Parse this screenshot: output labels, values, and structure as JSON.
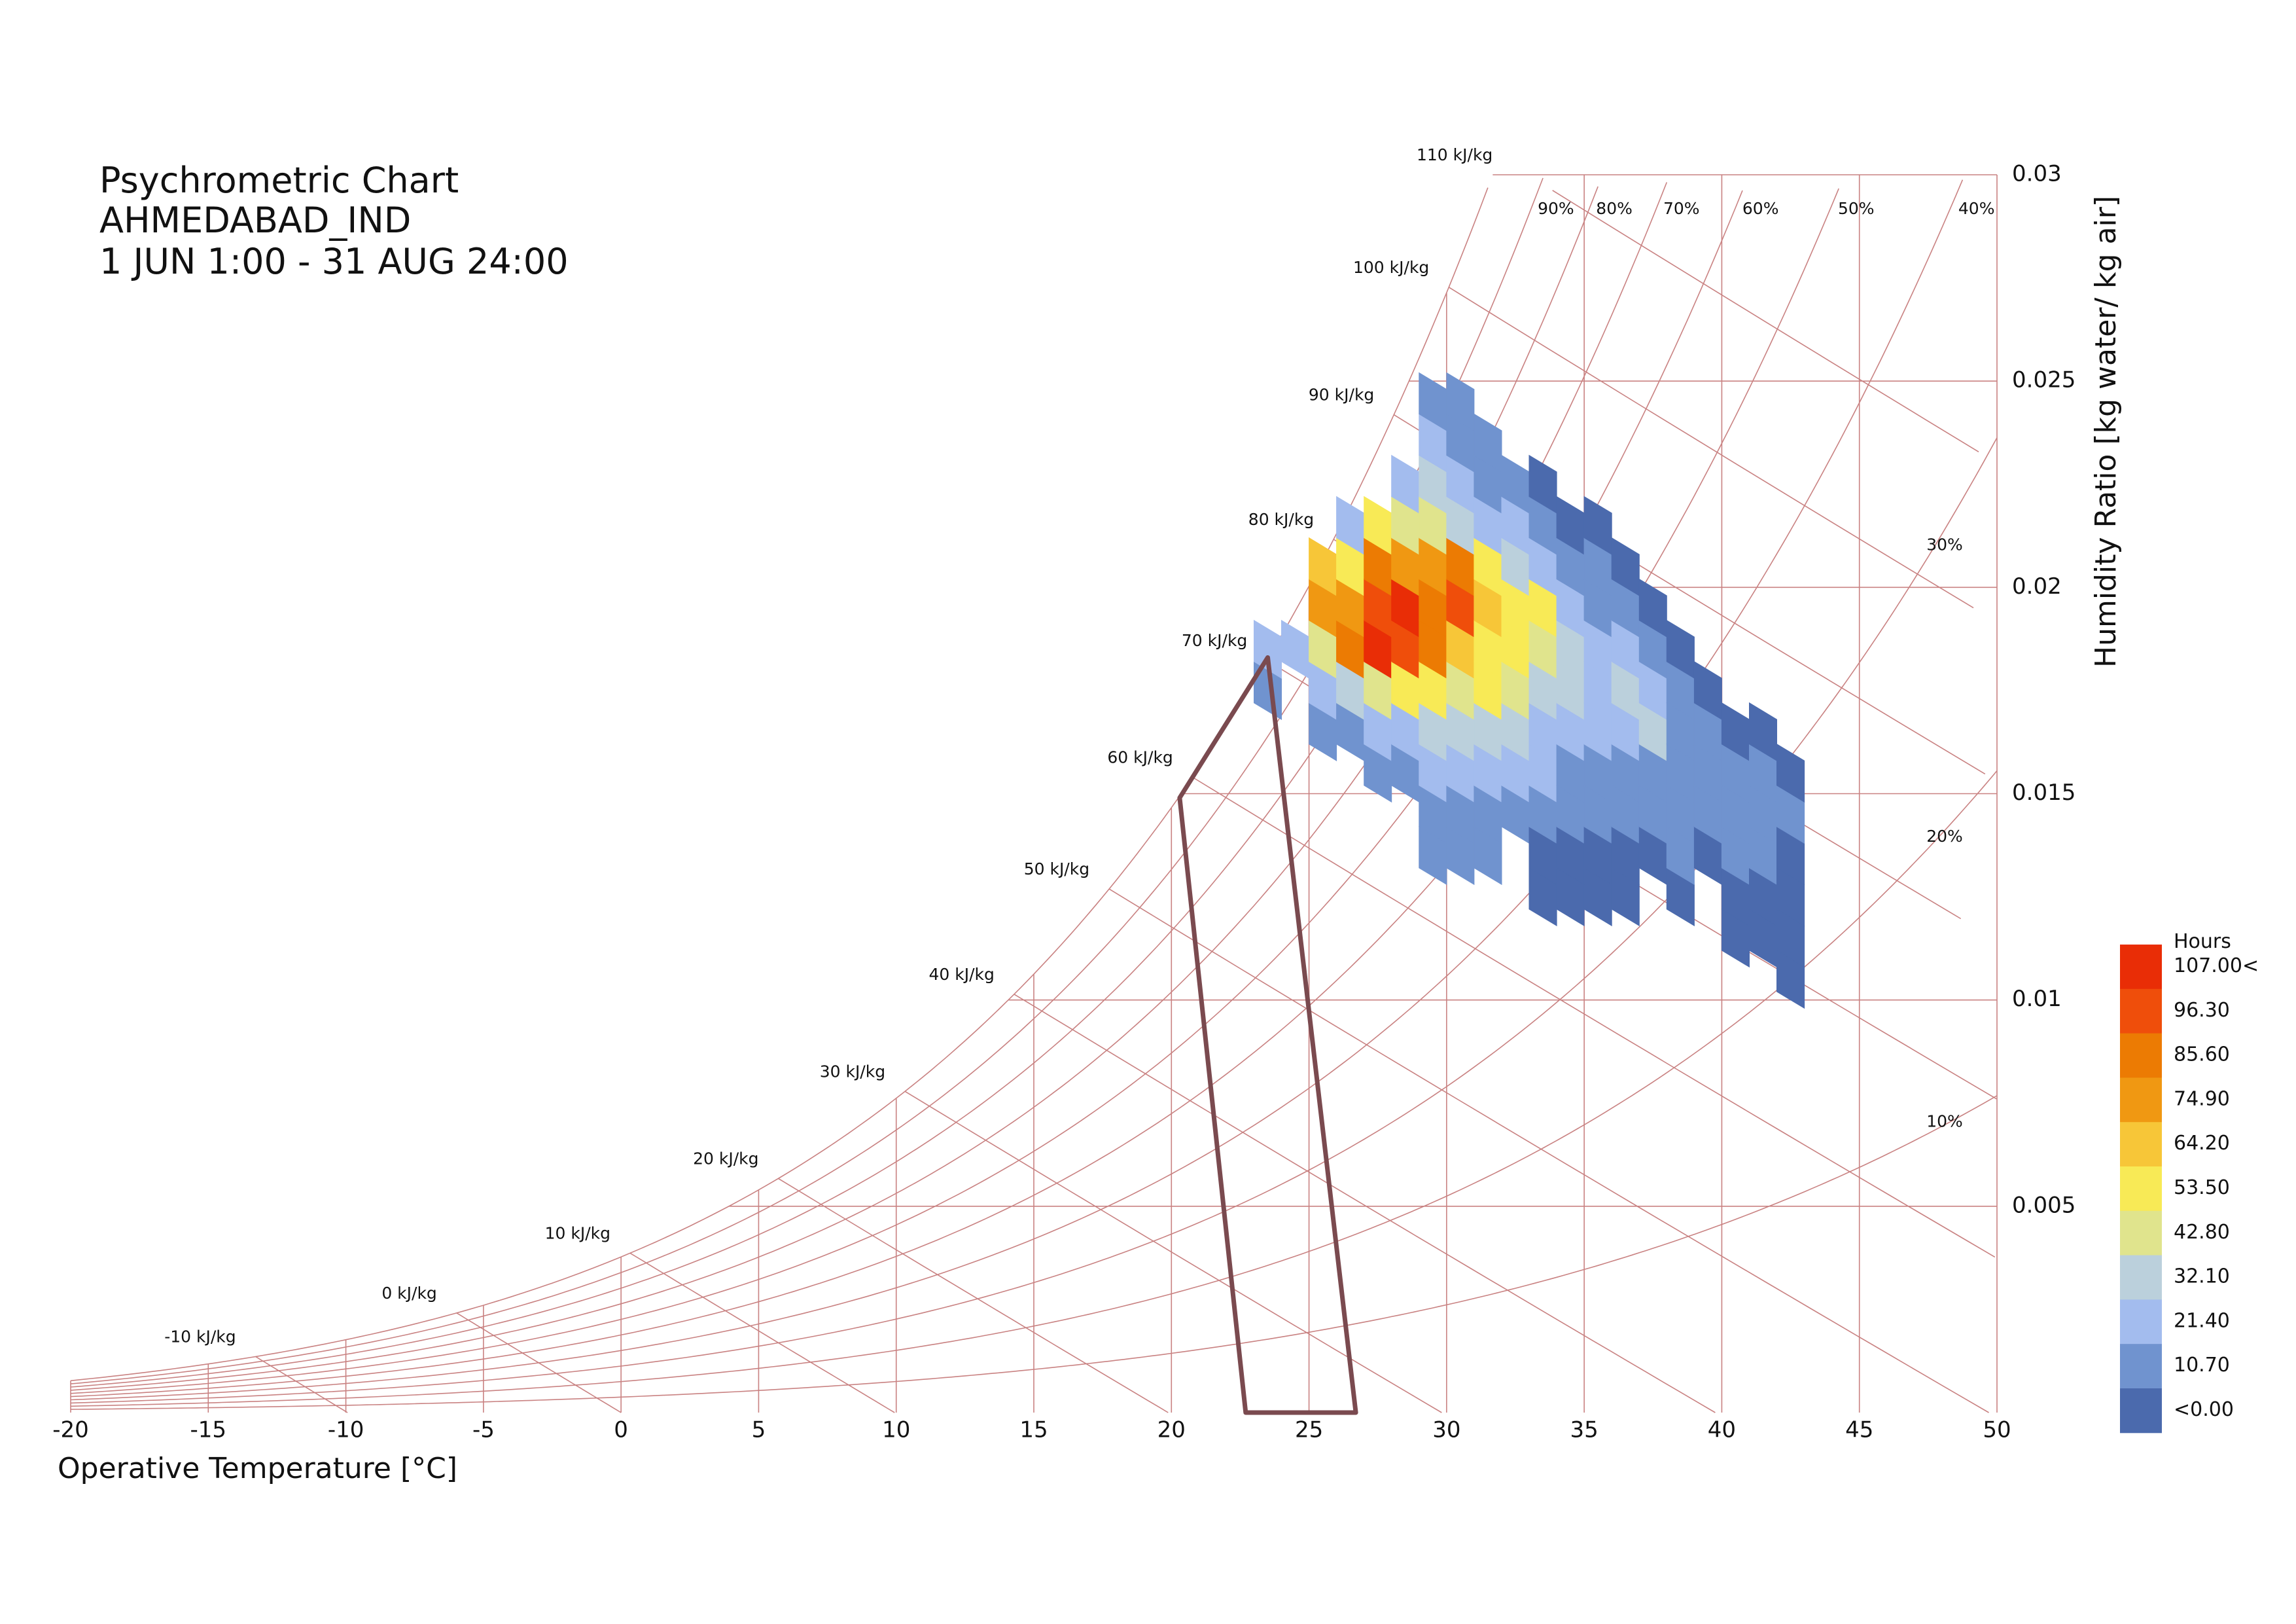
{
  "chart_data": {
    "type": "heatmap",
    "chart_kind": "psychrometric",
    "title_lines": [
      "Psychrometric Chart",
      "AHMEDABAD_IND",
      "1 JUN 1:00 - 31 AUG 24:00"
    ],
    "xlabel": "Operative Temperature [°C]",
    "ylabel": "Humidity Ratio [kg water/ kg air]",
    "xlim": [
      -20,
      50
    ],
    "ylim": [
      0,
      0.03
    ],
    "x_ticks": [
      "-20",
      "-15",
      "-10",
      "-5",
      "0",
      "5",
      "10",
      "15",
      "20",
      "25",
      "30",
      "35",
      "40",
      "45",
      "50"
    ],
    "y_ticks": [
      {
        "value": 0.005,
        "label": "0.005"
      },
      {
        "value": 0.01,
        "label": "0.01"
      },
      {
        "value": 0.015,
        "label": "0.015"
      },
      {
        "value": 0.02,
        "label": "0.02"
      },
      {
        "value": 0.025,
        "label": "0.025"
      },
      {
        "value": 0.03,
        "label": "0.03"
      }
    ],
    "enthalpy_labels": [
      {
        "value": -10,
        "label": "-10 kJ/kg"
      },
      {
        "value": 0,
        "label": "0 kJ/kg"
      },
      {
        "value": 10,
        "label": "10 kJ/kg"
      },
      {
        "value": 20,
        "label": "20 kJ/kg"
      },
      {
        "value": 30,
        "label": "30 kJ/kg"
      },
      {
        "value": 40,
        "label": "40 kJ/kg"
      },
      {
        "value": 50,
        "label": "50 kJ/kg"
      },
      {
        "value": 60,
        "label": "60 kJ/kg"
      },
      {
        "value": 70,
        "label": "70 kJ/kg"
      },
      {
        "value": 80,
        "label": "80 kJ/kg"
      },
      {
        "value": 90,
        "label": "90 kJ/kg"
      },
      {
        "value": 100,
        "label": "100 kJ/kg"
      },
      {
        "value": 110,
        "label": "110 kJ/kg"
      }
    ],
    "rh_labels": [
      {
        "rh": 0.9,
        "label": "90%"
      },
      {
        "rh": 0.8,
        "label": "80%"
      },
      {
        "rh": 0.7,
        "label": "70%"
      },
      {
        "rh": 0.6,
        "label": "60%"
      },
      {
        "rh": 0.5,
        "label": "50%"
      },
      {
        "rh": 0.4,
        "label": "40%"
      },
      {
        "rh": 0.3,
        "label": "30%"
      },
      {
        "rh": 0.2,
        "label": "20%"
      },
      {
        "rh": 0.1,
        "label": "10%"
      }
    ],
    "comfort_polygon": [
      [
        22.7,
        0.0
      ],
      [
        26.7,
        0.0
      ],
      [
        23.5,
        0.0183
      ],
      [
        20.3,
        0.0149
      ]
    ],
    "legend": {
      "title": "Hours",
      "position": "bottom-right",
      "labels": [
        "107.00<",
        "96.30",
        "85.60",
        "74.90",
        "64.20",
        "53.50",
        "42.80",
        "32.10",
        "21.40",
        "10.70",
        "<0.00"
      ],
      "colors": [
        "#e92d06",
        "#ef4e0b",
        "#ec7b03",
        "#f09812",
        "#f7c638",
        "#f8ea56",
        "#e0e48d",
        "#bbd0dc",
        "#a3bcee",
        "#7093cf",
        "#4b6aad"
      ]
    },
    "cells": [
      {
        "t": 23.5,
        "w": 0.0175,
        "c": 1
      },
      {
        "t": 23.5,
        "w": 0.0185,
        "c": 2
      },
      {
        "t": 24.5,
        "w": 0.0185,
        "c": 2
      },
      {
        "t": 25.5,
        "w": 0.0165,
        "c": 1
      },
      {
        "t": 25.5,
        "w": 0.0175,
        "c": 2
      },
      {
        "t": 25.5,
        "w": 0.0185,
        "c": 4
      },
      {
        "t": 25.5,
        "w": 0.0195,
        "c": 7
      },
      {
        "t": 25.5,
        "w": 0.0205,
        "c": 6
      },
      {
        "t": 26.5,
        "w": 0.0165,
        "c": 1
      },
      {
        "t": 26.5,
        "w": 0.0175,
        "c": 3
      },
      {
        "t": 26.5,
        "w": 0.0185,
        "c": 8
      },
      {
        "t": 26.5,
        "w": 0.0195,
        "c": 7
      },
      {
        "t": 26.5,
        "w": 0.0205,
        "c": 5
      },
      {
        "t": 26.5,
        "w": 0.0215,
        "c": 2
      },
      {
        "t": 27.5,
        "w": 0.0155,
        "c": 1
      },
      {
        "t": 27.5,
        "w": 0.0165,
        "c": 2
      },
      {
        "t": 27.5,
        "w": 0.0175,
        "c": 4
      },
      {
        "t": 27.5,
        "w": 0.0185,
        "c": 10
      },
      {
        "t": 27.5,
        "w": 0.0195,
        "c": 9
      },
      {
        "t": 27.5,
        "w": 0.0205,
        "c": 8
      },
      {
        "t": 27.5,
        "w": 0.0215,
        "c": 5
      },
      {
        "t": 28.5,
        "w": 0.0155,
        "c": 1
      },
      {
        "t": 28.5,
        "w": 0.0165,
        "c": 2
      },
      {
        "t": 28.5,
        "w": 0.0175,
        "c": 5
      },
      {
        "t": 28.5,
        "w": 0.0185,
        "c": 9
      },
      {
        "t": 28.5,
        "w": 0.0195,
        "c": 10
      },
      {
        "t": 28.5,
        "w": 0.0205,
        "c": 7
      },
      {
        "t": 28.5,
        "w": 0.0215,
        "c": 4
      },
      {
        "t": 28.5,
        "w": 0.0225,
        "c": 2
      },
      {
        "t": 29.5,
        "w": 0.0135,
        "c": 1
      },
      {
        "t": 29.5,
        "w": 0.0145,
        "c": 1
      },
      {
        "t": 29.5,
        "w": 0.0155,
        "c": 2
      },
      {
        "t": 29.5,
        "w": 0.0165,
        "c": 3
      },
      {
        "t": 29.5,
        "w": 0.0175,
        "c": 5
      },
      {
        "t": 29.5,
        "w": 0.0185,
        "c": 8
      },
      {
        "t": 29.5,
        "w": 0.0195,
        "c": 8
      },
      {
        "t": 29.5,
        "w": 0.0205,
        "c": 7
      },
      {
        "t": 29.5,
        "w": 0.0215,
        "c": 4
      },
      {
        "t": 29.5,
        "w": 0.0225,
        "c": 3
      },
      {
        "t": 29.5,
        "w": 0.0235,
        "c": 2
      },
      {
        "t": 29.5,
        "w": 0.0245,
        "c": 1
      },
      {
        "t": 30.5,
        "w": 0.0135,
        "c": 1
      },
      {
        "t": 30.5,
        "w": 0.0145,
        "c": 1
      },
      {
        "t": 30.5,
        "w": 0.0155,
        "c": 2
      },
      {
        "t": 30.5,
        "w": 0.0165,
        "c": 3
      },
      {
        "t": 30.5,
        "w": 0.0175,
        "c": 4
      },
      {
        "t": 30.5,
        "w": 0.0185,
        "c": 6
      },
      {
        "t": 30.5,
        "w": 0.0195,
        "c": 9
      },
      {
        "t": 30.5,
        "w": 0.0205,
        "c": 8
      },
      {
        "t": 30.5,
        "w": 0.0215,
        "c": 3
      },
      {
        "t": 30.5,
        "w": 0.0225,
        "c": 2
      },
      {
        "t": 30.5,
        "w": 0.0235,
        "c": 1
      },
      {
        "t": 30.5,
        "w": 0.0245,
        "c": 1
      },
      {
        "t": 31.5,
        "w": 0.0135,
        "c": 1
      },
      {
        "t": 31.5,
        "w": 0.0145,
        "c": 1
      },
      {
        "t": 31.5,
        "w": 0.0155,
        "c": 2
      },
      {
        "t": 31.5,
        "w": 0.0165,
        "c": 3
      },
      {
        "t": 31.5,
        "w": 0.0175,
        "c": 5
      },
      {
        "t": 31.5,
        "w": 0.0185,
        "c": 5
      },
      {
        "t": 31.5,
        "w": 0.0195,
        "c": 6
      },
      {
        "t": 31.5,
        "w": 0.0205,
        "c": 5
      },
      {
        "t": 31.5,
        "w": 0.0215,
        "c": 2
      },
      {
        "t": 31.5,
        "w": 0.0225,
        "c": 1
      },
      {
        "t": 31.5,
        "w": 0.0235,
        "c": 1
      },
      {
        "t": 32.5,
        "w": 0.0145,
        "c": 1
      },
      {
        "t": 32.5,
        "w": 0.0155,
        "c": 2
      },
      {
        "t": 32.5,
        "w": 0.0165,
        "c": 3
      },
      {
        "t": 32.5,
        "w": 0.0175,
        "c": 4
      },
      {
        "t": 32.5,
        "w": 0.0185,
        "c": 5
      },
      {
        "t": 32.5,
        "w": 0.0195,
        "c": 5
      },
      {
        "t": 32.5,
        "w": 0.0205,
        "c": 3
      },
      {
        "t": 32.5,
        "w": 0.0215,
        "c": 2
      },
      {
        "t": 32.5,
        "w": 0.0225,
        "c": 1
      },
      {
        "t": 33.5,
        "w": 0.0125,
        "c": 0
      },
      {
        "t": 33.5,
        "w": 0.0135,
        "c": 0
      },
      {
        "t": 33.5,
        "w": 0.0145,
        "c": 1
      },
      {
        "t": 33.5,
        "w": 0.0155,
        "c": 2
      },
      {
        "t": 33.5,
        "w": 0.0165,
        "c": 2
      },
      {
        "t": 33.5,
        "w": 0.0175,
        "c": 3
      },
      {
        "t": 33.5,
        "w": 0.0185,
        "c": 4
      },
      {
        "t": 33.5,
        "w": 0.0195,
        "c": 5
      },
      {
        "t": 33.5,
        "w": 0.0205,
        "c": 2
      },
      {
        "t": 33.5,
        "w": 0.0215,
        "c": 1
      },
      {
        "t": 33.5,
        "w": 0.0225,
        "c": 0
      },
      {
        "t": 34.5,
        "w": 0.0125,
        "c": 0
      },
      {
        "t": 34.5,
        "w": 0.0135,
        "c": 0
      },
      {
        "t": 34.5,
        "w": 0.0145,
        "c": 1
      },
      {
        "t": 34.5,
        "w": 0.0155,
        "c": 1
      },
      {
        "t": 34.5,
        "w": 0.0165,
        "c": 2
      },
      {
        "t": 34.5,
        "w": 0.0175,
        "c": 3
      },
      {
        "t": 34.5,
        "w": 0.0185,
        "c": 3
      },
      {
        "t": 34.5,
        "w": 0.0195,
        "c": 2
      },
      {
        "t": 34.5,
        "w": 0.0205,
        "c": 1
      },
      {
        "t": 34.5,
        "w": 0.0215,
        "c": 0
      },
      {
        "t": 35.5,
        "w": 0.0125,
        "c": 0
      },
      {
        "t": 35.5,
        "w": 0.0135,
        "c": 0
      },
      {
        "t": 35.5,
        "w": 0.0145,
        "c": 1
      },
      {
        "t": 35.5,
        "w": 0.0155,
        "c": 1
      },
      {
        "t": 35.5,
        "w": 0.0165,
        "c": 2
      },
      {
        "t": 35.5,
        "w": 0.0175,
        "c": 2
      },
      {
        "t": 35.5,
        "w": 0.0185,
        "c": 2
      },
      {
        "t": 35.5,
        "w": 0.0195,
        "c": 1
      },
      {
        "t": 35.5,
        "w": 0.0205,
        "c": 1
      },
      {
        "t": 35.5,
        "w": 0.0215,
        "c": 0
      },
      {
        "t": 36.5,
        "w": 0.0125,
        "c": 0
      },
      {
        "t": 36.5,
        "w": 0.0135,
        "c": 0
      },
      {
        "t": 36.5,
        "w": 0.0145,
        "c": 1
      },
      {
        "t": 36.5,
        "w": 0.0155,
        "c": 1
      },
      {
        "t": 36.5,
        "w": 0.0165,
        "c": 2
      },
      {
        "t": 36.5,
        "w": 0.0175,
        "c": 3
      },
      {
        "t": 36.5,
        "w": 0.0185,
        "c": 2
      },
      {
        "t": 36.5,
        "w": 0.0195,
        "c": 1
      },
      {
        "t": 36.5,
        "w": 0.0205,
        "c": 0
      },
      {
        "t": 37.5,
        "w": 0.0135,
        "c": 0
      },
      {
        "t": 37.5,
        "w": 0.0145,
        "c": 1
      },
      {
        "t": 37.5,
        "w": 0.0155,
        "c": 1
      },
      {
        "t": 37.5,
        "w": 0.0165,
        "c": 3
      },
      {
        "t": 37.5,
        "w": 0.0175,
        "c": 2
      },
      {
        "t": 37.5,
        "w": 0.0185,
        "c": 1
      },
      {
        "t": 37.5,
        "w": 0.0195,
        "c": 0
      },
      {
        "t": 38.5,
        "w": 0.0125,
        "c": 0
      },
      {
        "t": 38.5,
        "w": 0.0135,
        "c": 1
      },
      {
        "t": 38.5,
        "w": 0.0145,
        "c": 1
      },
      {
        "t": 38.5,
        "w": 0.0155,
        "c": 1
      },
      {
        "t": 38.5,
        "w": 0.0165,
        "c": 1
      },
      {
        "t": 38.5,
        "w": 0.0175,
        "c": 1
      },
      {
        "t": 38.5,
        "w": 0.0185,
        "c": 0
      },
      {
        "t": 39.5,
        "w": 0.0135,
        "c": 0
      },
      {
        "t": 39.5,
        "w": 0.0145,
        "c": 1
      },
      {
        "t": 39.5,
        "w": 0.0155,
        "c": 1
      },
      {
        "t": 39.5,
        "w": 0.0165,
        "c": 1
      },
      {
        "t": 39.5,
        "w": 0.0175,
        "c": 0
      },
      {
        "t": 40.5,
        "w": 0.0115,
        "c": 0
      },
      {
        "t": 40.5,
        "w": 0.0125,
        "c": 0
      },
      {
        "t": 40.5,
        "w": 0.0135,
        "c": 1
      },
      {
        "t": 40.5,
        "w": 0.0145,
        "c": 1
      },
      {
        "t": 40.5,
        "w": 0.0155,
        "c": 1
      },
      {
        "t": 40.5,
        "w": 0.0165,
        "c": 0
      },
      {
        "t": 41.5,
        "w": 0.0115,
        "c": 0
      },
      {
        "t": 41.5,
        "w": 0.0125,
        "c": 0
      },
      {
        "t": 41.5,
        "w": 0.0135,
        "c": 1
      },
      {
        "t": 41.5,
        "w": 0.0145,
        "c": 1
      },
      {
        "t": 41.5,
        "w": 0.0155,
        "c": 1
      },
      {
        "t": 41.5,
        "w": 0.0165,
        "c": 0
      },
      {
        "t": 42.5,
        "w": 0.0105,
        "c": 0
      },
      {
        "t": 42.5,
        "w": 0.0115,
        "c": 0
      },
      {
        "t": 42.5,
        "w": 0.0125,
        "c": 0
      },
      {
        "t": 42.5,
        "w": 0.0135,
        "c": 0
      },
      {
        "t": 42.5,
        "w": 0.0145,
        "c": 1
      },
      {
        "t": 42.5,
        "w": 0.0155,
        "c": 0
      }
    ]
  }
}
